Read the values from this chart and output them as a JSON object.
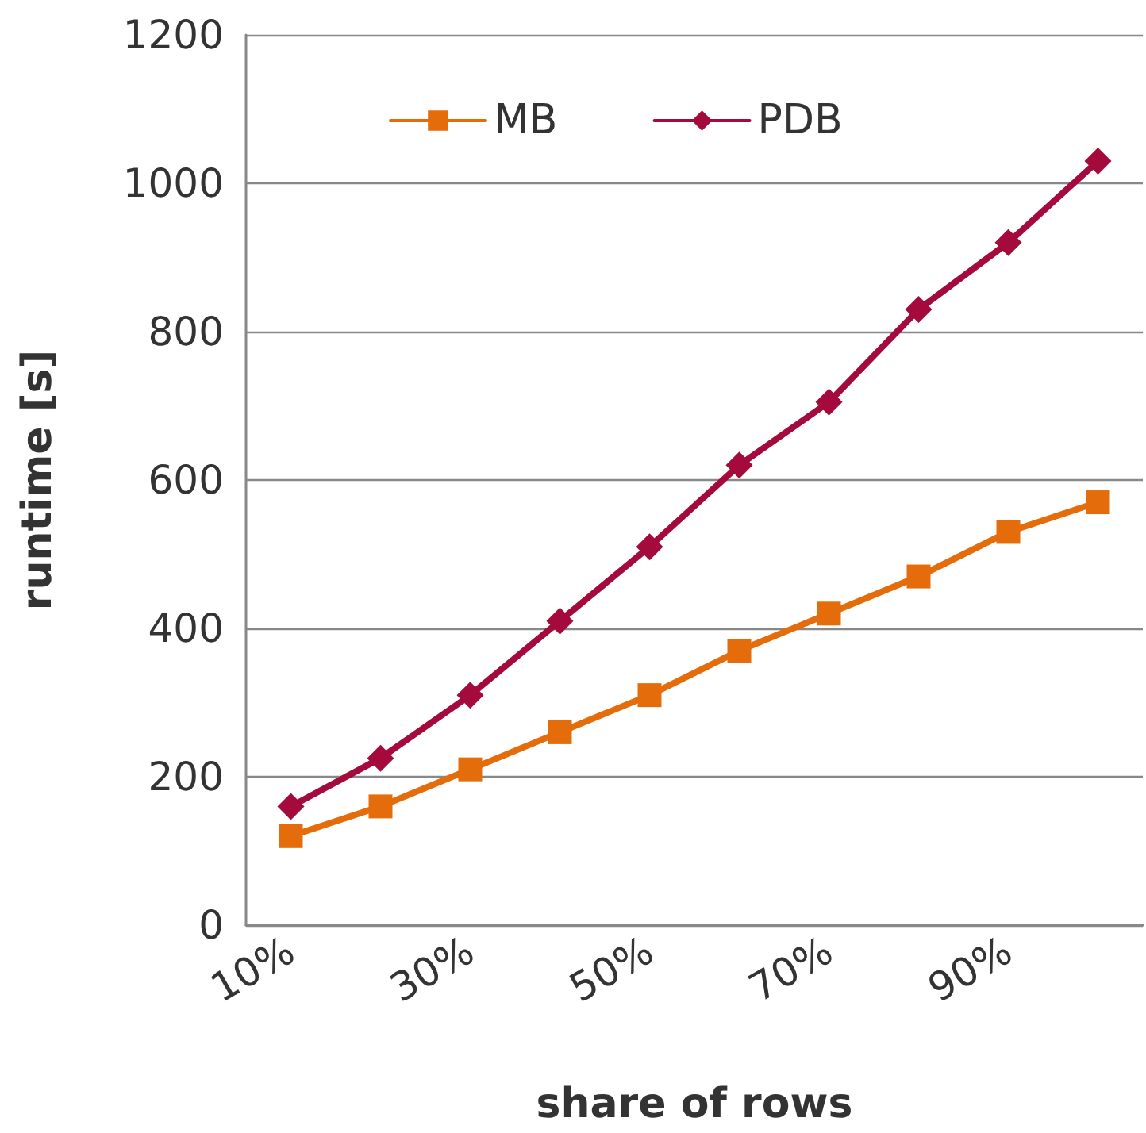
{
  "chart_data": {
    "type": "line",
    "xlabel": "share of rows",
    "ylabel": "runtime [s]",
    "categories": [
      "10%",
      null,
      "30%",
      null,
      "50%",
      null,
      "70%",
      null,
      "90%",
      null
    ],
    "series": [
      {
        "name": "MB",
        "color": "#e46c0a",
        "marker": "square",
        "values": [
          120,
          160,
          210,
          260,
          310,
          370,
          420,
          470,
          530,
          570
        ]
      },
      {
        "name": "PDB",
        "color": "#a50a3c",
        "marker": "diamond",
        "values": [
          160,
          225,
          310,
          410,
          510,
          620,
          705,
          830,
          920,
          1030
        ]
      }
    ],
    "ylim": [
      0,
      1200
    ],
    "yticks": [
      0,
      200,
      400,
      600,
      800,
      1000,
      1200
    ],
    "grid": "y",
    "legend": "top",
    "line_style": "solid"
  }
}
